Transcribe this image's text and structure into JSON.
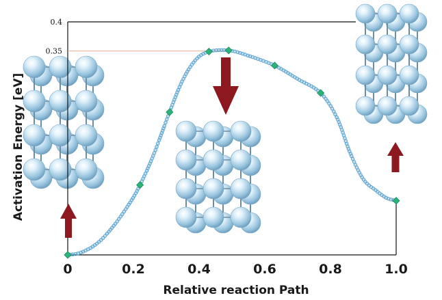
{
  "chart_data": {
    "type": "line",
    "title": "",
    "xlabel": "Relative reaction Path",
    "ylabel": "Activation Energy [eV]",
    "xlim": [
      0,
      1.0
    ],
    "ylim": [
      0,
      0.4
    ],
    "x_ticks": [
      {
        "value": 0,
        "label": "0"
      },
      {
        "value": 0.2,
        "label": "0.2"
      },
      {
        "value": 0.4,
        "label": "0.4"
      },
      {
        "value": 0.6,
        "label": "0.6"
      },
      {
        "value": 0.8,
        "label": "0.8"
      },
      {
        "value": 1.0,
        "label": "1.0"
      }
    ],
    "y_ticks": [
      {
        "value": 0.4,
        "label": "0.4"
      },
      {
        "value": 0.35,
        "label": "0.35"
      }
    ],
    "series": [
      {
        "x": [
          0.0,
          0.04,
          0.09,
          0.14,
          0.19,
          0.22,
          0.26,
          0.31,
          0.35,
          0.39,
          0.43,
          0.49,
          0.55,
          0.63,
          0.7,
          0.77,
          0.82,
          0.86,
          0.9,
          0.94,
          0.97,
          1.0
        ],
        "y": [
          0.0,
          0.004,
          0.02,
          0.05,
          0.09,
          0.12,
          0.17,
          0.245,
          0.3,
          0.335,
          0.349,
          0.351,
          0.342,
          0.325,
          0.302,
          0.278,
          0.235,
          0.175,
          0.13,
          0.11,
          0.098,
          0.093
        ]
      }
    ],
    "markers": {
      "x": [
        0.0,
        0.22,
        0.31,
        0.43,
        0.49,
        0.63,
        0.77,
        1.0
      ],
      "y": [
        0.0,
        0.12,
        0.245,
        0.349,
        0.351,
        0.325,
        0.278,
        0.093
      ]
    },
    "reference_line_y": 0.35,
    "colors": {
      "curve": "#5aa2cf",
      "marker": "#2bb37a",
      "arrow": "#8c1820",
      "atom_light": "#e8f4fb",
      "atom_dark": "#7fb0cf",
      "bond": "#6a8ea4",
      "reference_line": "#e8b090"
    },
    "arrows": [
      {
        "direction": "up",
        "location": "near-start"
      },
      {
        "direction": "down",
        "location": "saddle-point"
      },
      {
        "direction": "up",
        "location": "near-end"
      }
    ],
    "structure_images": [
      "initial-structure",
      "saddle-structure",
      "final-structure"
    ]
  }
}
